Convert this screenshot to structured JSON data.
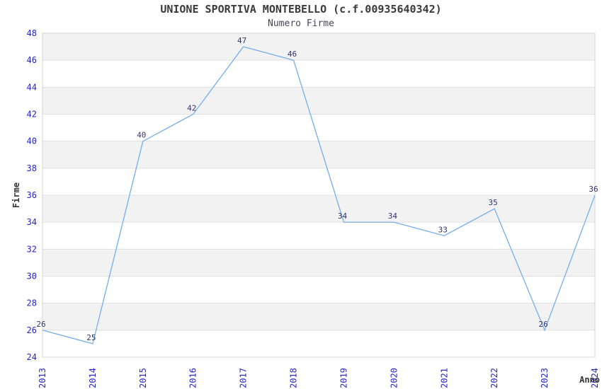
{
  "header": {
    "title": "UNIONE SPORTIVA MONTEBELLO (c.f.00935640342)",
    "subtitle": "Numero Firme"
  },
  "chart_data": {
    "type": "line",
    "title": "UNIONE SPORTIVA MONTEBELLO (c.f.00935640342)",
    "subtitle": "Numero Firme",
    "categories": [
      "2013",
      "2014",
      "2015",
      "2016",
      "2017",
      "2018",
      "2019",
      "2020",
      "2021",
      "2022",
      "2023",
      "2024"
    ],
    "values": [
      26,
      25,
      40,
      42,
      47,
      46,
      34,
      34,
      33,
      35,
      26,
      36
    ],
    "xlabel": "Anno",
    "ylabel": "Firme",
    "ylim": [
      24,
      48
    ],
    "y_tick_step": 2,
    "grid": "alternating-bands",
    "legend": "none",
    "data_labels": true
  },
  "colors": {
    "background": "#ffffff",
    "band_gray": "#f2f2f2",
    "band_white": "#ffffff",
    "gridline": "#e0e0e0",
    "plot_border": "#d6d6d6",
    "line": "#7fb2e8",
    "data_label": "#333370",
    "tick_label": "#2525cd",
    "title": "#3a3a3a",
    "subtitle": "#474760",
    "axis_name": "#333333"
  }
}
